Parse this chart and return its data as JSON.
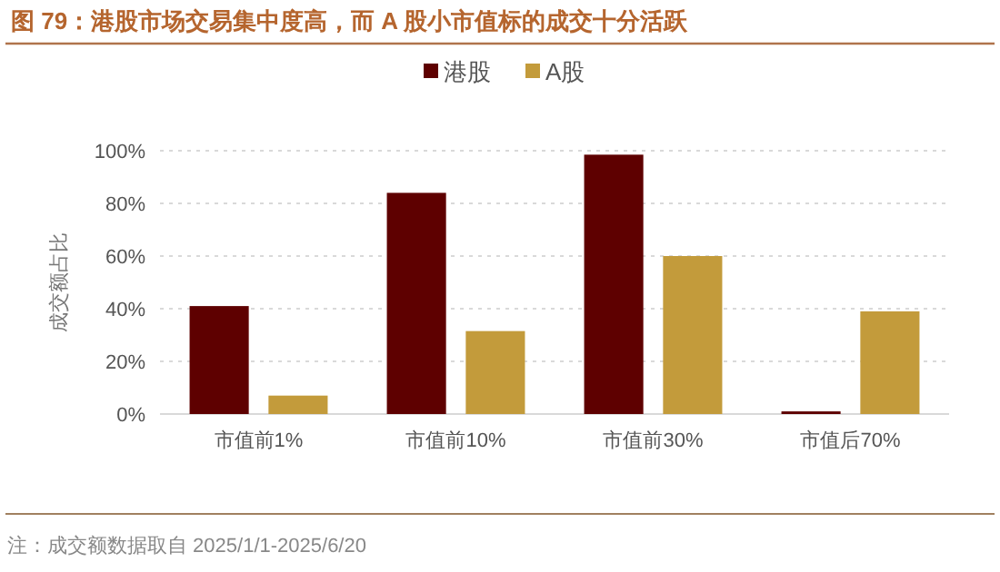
{
  "chart_data": {
    "type": "bar",
    "title": "图 79：港股市场交易集中度高，而 A 股小市值标的成交十分活跃",
    "ylabel": "成交额占比",
    "categories": [
      "市值前1%",
      "市值前10%",
      "市值前30%",
      "市值后70%"
    ],
    "series": [
      {
        "name": "港股",
        "color": "#5e0000",
        "values": [
          41,
          84,
          98.5,
          1
        ]
      },
      {
        "name": "A股",
        "color": "#c39b3b",
        "values": [
          7,
          31.5,
          60,
          39
        ]
      }
    ],
    "ylim": [
      0,
      100
    ],
    "yticks": [
      {
        "value": 0,
        "label": "0%"
      },
      {
        "value": 20,
        "label": "20%"
      },
      {
        "value": 40,
        "label": "40%"
      },
      {
        "value": 60,
        "label": "60%"
      },
      {
        "value": 80,
        "label": "80%"
      },
      {
        "value": 100,
        "label": "100%"
      }
    ],
    "grid": "y",
    "legend": "top",
    "annotations": [
      "注：成交额数据取自 2025/1/1-2025/6/20"
    ]
  }
}
